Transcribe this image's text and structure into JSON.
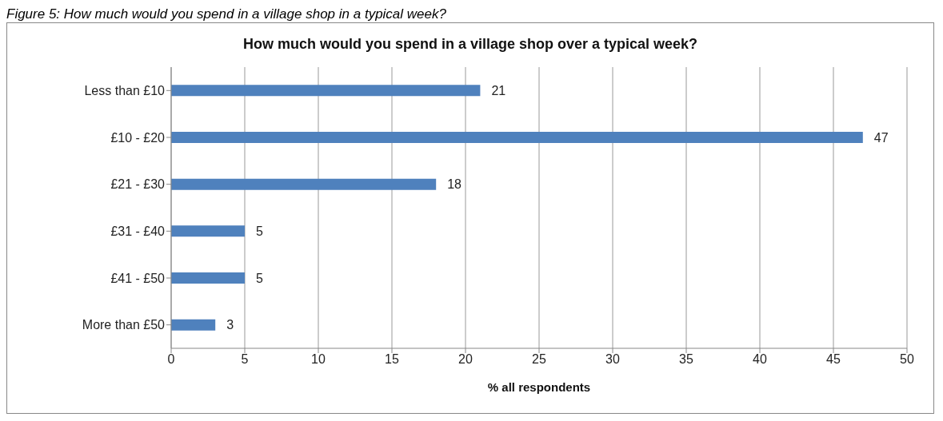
{
  "chart_data": {
    "type": "bar",
    "orientation": "horizontal",
    "title": "How much would you spend in a village shop over a typical week?",
    "xlabel": "% all respondents",
    "annotations": [
      "Figure 5: How much would you spend in a village shop in a typical week?"
    ],
    "categories": [
      "Less than £10",
      "£10 - £20",
      "£21 - £30",
      "£31 - £40",
      "£41 - £50",
      "More than £50"
    ],
    "values": [
      21,
      47,
      18,
      5,
      5,
      3
    ],
    "color": "#4f81bd",
    "xlim": [
      0,
      50
    ],
    "xticks": [
      0,
      5,
      10,
      15,
      20,
      25,
      30,
      35,
      40,
      45,
      50
    ],
    "grid": "x",
    "data_labels": true
  }
}
